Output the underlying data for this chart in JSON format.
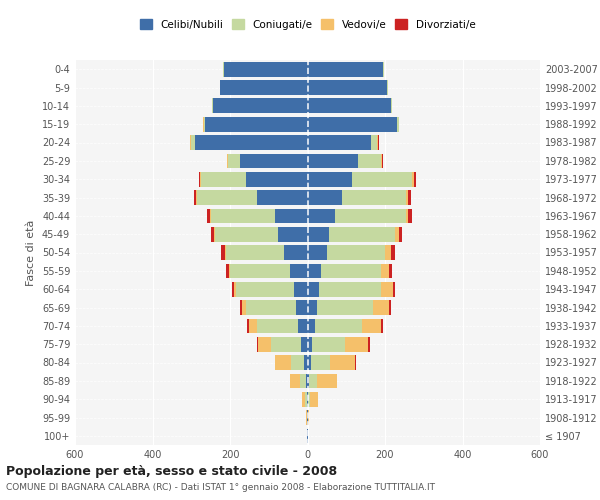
{
  "age_groups": [
    "100+",
    "95-99",
    "90-94",
    "85-89",
    "80-84",
    "75-79",
    "70-74",
    "65-69",
    "60-64",
    "55-59",
    "50-54",
    "45-49",
    "40-44",
    "35-39",
    "30-34",
    "25-29",
    "20-24",
    "15-19",
    "10-14",
    "5-9",
    "0-4"
  ],
  "birth_years": [
    "≤ 1907",
    "1908-1912",
    "1913-1917",
    "1918-1922",
    "1923-1927",
    "1928-1932",
    "1933-1937",
    "1938-1942",
    "1943-1947",
    "1948-1952",
    "1953-1957",
    "1958-1962",
    "1963-1967",
    "1968-1972",
    "1973-1977",
    "1978-1982",
    "1983-1987",
    "1988-1992",
    "1993-1997",
    "1998-2002",
    "2003-2007"
  ],
  "colors": {
    "celibi": "#3f6ea8",
    "coniugati": "#c5d9a0",
    "vedovi": "#f5c06a",
    "divorziati": "#cc2222"
  },
  "males": {
    "celibi": [
      1,
      1,
      2,
      5,
      8,
      18,
      25,
      30,
      35,
      45,
      60,
      75,
      85,
      130,
      160,
      175,
      290,
      265,
      245,
      225,
      215
    ],
    "coniugati": [
      0,
      1,
      4,
      15,
      35,
      75,
      105,
      130,
      150,
      155,
      150,
      165,
      165,
      155,
      115,
      30,
      10,
      3,
      2,
      2,
      2
    ],
    "vedovi": [
      0,
      2,
      8,
      25,
      40,
      35,
      20,
      10,
      5,
      3,
      2,
      2,
      2,
      2,
      2,
      2,
      2,
      1,
      0,
      0,
      0
    ],
    "divorziati": [
      0,
      0,
      0,
      0,
      1,
      2,
      5,
      5,
      5,
      8,
      10,
      8,
      8,
      5,
      3,
      2,
      2,
      1,
      0,
      0,
      0
    ]
  },
  "females": {
    "nubili": [
      1,
      1,
      2,
      5,
      8,
      12,
      20,
      25,
      30,
      35,
      50,
      55,
      70,
      90,
      115,
      130,
      165,
      230,
      215,
      205,
      195
    ],
    "coniugate": [
      0,
      1,
      5,
      20,
      50,
      85,
      120,
      145,
      160,
      155,
      150,
      170,
      185,
      165,
      155,
      60,
      15,
      5,
      2,
      2,
      2
    ],
    "vedove": [
      1,
      3,
      20,
      50,
      65,
      60,
      50,
      40,
      30,
      20,
      15,
      10,
      5,
      5,
      5,
      2,
      2,
      1,
      0,
      0,
      0
    ],
    "divorziate": [
      0,
      0,
      0,
      1,
      2,
      3,
      6,
      5,
      5,
      8,
      10,
      10,
      10,
      8,
      5,
      2,
      2,
      1,
      0,
      0,
      0
    ]
  },
  "title_main": "Popolazione per età, sesso e stato civile - 2008",
  "title_sub": "COMUNE DI BAGNARA CALABRA (RC) - Dati ISTAT 1° gennaio 2008 - Elaborazione TUTTITALIA.IT",
  "ylabel_left": "Fasce di età",
  "xlim": 600,
  "legend_labels": [
    "Celibi/Nubili",
    "Coniugati/e",
    "Vedovi/e",
    "Divorziati/e"
  ],
  "background_color": "#f5f5f5"
}
